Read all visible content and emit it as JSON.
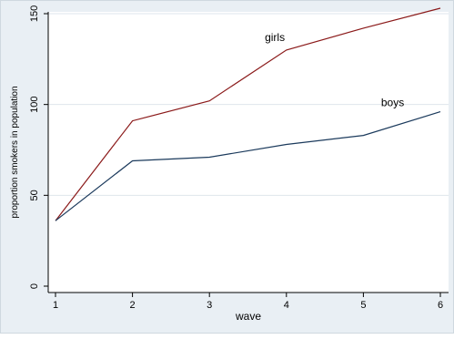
{
  "chart_data": {
    "type": "line",
    "x": [
      1,
      2,
      3,
      4,
      5,
      6
    ],
    "xlabel": "wave",
    "ylabel": "proportion smokers in population",
    "xlim": [
      1,
      6
    ],
    "ylim": [
      0,
      150
    ],
    "xticks": [
      "1",
      "2",
      "3",
      "4",
      "5",
      "6"
    ],
    "yticks": [
      "0",
      "50",
      "100",
      "150"
    ],
    "grid": true,
    "series": [
      {
        "name": "girls",
        "values": [
          36,
          91,
          102,
          130,
          142,
          153
        ],
        "color": "#8b1a1a"
      },
      {
        "name": "boys",
        "values": [
          36,
          69,
          71,
          78,
          83,
          96
        ],
        "color": "#1b3a5c"
      }
    ]
  }
}
